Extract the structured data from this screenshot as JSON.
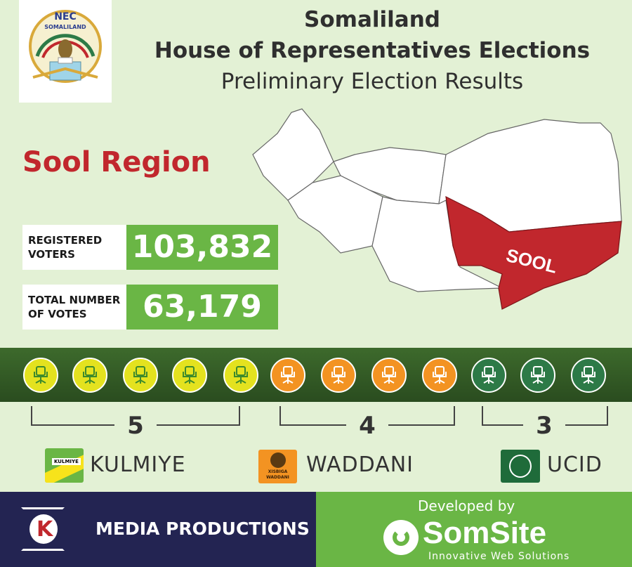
{
  "header": {
    "logo_text_top": "NEC",
    "logo_text_arc": "SOMALILAND",
    "title_line1": "Somaliland",
    "title_line2": "House of Representatives Elections",
    "title_line3": "Preliminary Election Results"
  },
  "region": {
    "name": "Sool Region",
    "map_label": "SOOL",
    "highlight_color": "#c1272d"
  },
  "stats": [
    {
      "label_line1": "REGISTERED",
      "label_line2": "VOTERS",
      "value": "103,832"
    },
    {
      "label_line1": "TOTAL NUMBER",
      "label_line2": "OF VOTES",
      "value": "63,179"
    }
  ],
  "seats": {
    "icon": "office-chair-icon",
    "groups": [
      {
        "party": "KULMIYE",
        "count": "5",
        "color": "#e4e21f"
      },
      {
        "party": "WADDANI",
        "count": "4",
        "color": "#f39322"
      },
      {
        "party": "UCID",
        "count": "3",
        "color": "#2d7a47"
      }
    ]
  },
  "parties": [
    {
      "name": "KULMIYE",
      "logo_text": "KULMIYE"
    },
    {
      "name": "WADDANI",
      "logo_text_line1": "XISBIGA",
      "logo_text_line2": "WADDANI"
    },
    {
      "name": "UCID"
    }
  ],
  "footer": {
    "left_label": "MEDIA PRODUCTIONS",
    "right_caption": "Developed by",
    "brand": "SomSite",
    "tagline": "Innovative Web Solutions"
  },
  "colors": {
    "green": "#6ab645",
    "navy": "#232452",
    "band": "#3d6a2c"
  }
}
